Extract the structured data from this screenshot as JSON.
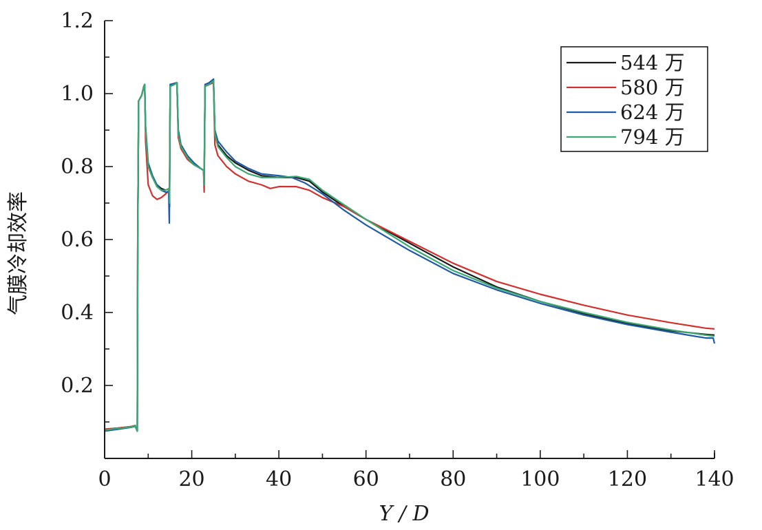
{
  "chart_data": {
    "type": "line",
    "xlabel": "Y / D",
    "ylabel": "气膜冷却效率",
    "xlim": [
      0,
      140
    ],
    "ylim": [
      0,
      1.2
    ],
    "xticks": [
      "0",
      "20",
      "40",
      "60",
      "80",
      "100",
      "120",
      "140"
    ],
    "yticks": [
      "0.2",
      "0.4",
      "0.6",
      "0.8",
      "1.0",
      "1.2"
    ],
    "grid": false,
    "legend_position": "top-right",
    "series": [
      {
        "name": "544 万",
        "color": "#1a1a1a",
        "points": [
          [
            0,
            0.08
          ],
          [
            3,
            0.083
          ],
          [
            6,
            0.087
          ],
          [
            7,
            0.09
          ],
          [
            7.5,
            0.075
          ],
          [
            7.6,
            0.6
          ],
          [
            7.8,
            0.98
          ],
          [
            8.5,
            0.995
          ],
          [
            9,
            1.02
          ],
          [
            9.2,
            1.025
          ],
          [
            9.4,
            0.9
          ],
          [
            10,
            0.8
          ],
          [
            11,
            0.77
          ],
          [
            12,
            0.75
          ],
          [
            13,
            0.74
          ],
          [
            14,
            0.735
          ],
          [
            14.8,
            0.74
          ],
          [
            14.9,
            0.69
          ],
          [
            15.05,
            1.02
          ],
          [
            16,
            1.025
          ],
          [
            16.6,
            1.03
          ],
          [
            16.9,
            0.9
          ],
          [
            17.5,
            0.86
          ],
          [
            19,
            0.83
          ],
          [
            20.5,
            0.81
          ],
          [
            22,
            0.795
          ],
          [
            22.7,
            0.79
          ],
          [
            22.85,
            0.75
          ],
          [
            23.05,
            1.02
          ],
          [
            24,
            1.025
          ],
          [
            25,
            1.035
          ],
          [
            25.3,
            0.9
          ],
          [
            26,
            0.86
          ],
          [
            28,
            0.83
          ],
          [
            30,
            0.81
          ],
          [
            33,
            0.79
          ],
          [
            36,
            0.775
          ],
          [
            40,
            0.77
          ],
          [
            44,
            0.77
          ],
          [
            47,
            0.76
          ],
          [
            50,
            0.73
          ],
          [
            55,
            0.69
          ],
          [
            60,
            0.655
          ],
          [
            70,
            0.59
          ],
          [
            80,
            0.525
          ],
          [
            90,
            0.47
          ],
          [
            100,
            0.43
          ],
          [
            110,
            0.397
          ],
          [
            120,
            0.37
          ],
          [
            130,
            0.35
          ],
          [
            138,
            0.34
          ],
          [
            140,
            0.338
          ]
        ]
      },
      {
        "name": "580 万",
        "color": "#d0312d",
        "points": [
          [
            0,
            0.08
          ],
          [
            3,
            0.083
          ],
          [
            6,
            0.087
          ],
          [
            7,
            0.09
          ],
          [
            7.5,
            0.075
          ],
          [
            7.6,
            0.6
          ],
          [
            7.8,
            0.98
          ],
          [
            8.5,
            0.995
          ],
          [
            9,
            1.02
          ],
          [
            9.2,
            1.025
          ],
          [
            9.4,
            0.87
          ],
          [
            10,
            0.75
          ],
          [
            11,
            0.72
          ],
          [
            12,
            0.71
          ],
          [
            13,
            0.715
          ],
          [
            14,
            0.725
          ],
          [
            14.8,
            0.735
          ],
          [
            14.9,
            0.73
          ],
          [
            15.05,
            1.02
          ],
          [
            16,
            1.025
          ],
          [
            16.6,
            1.03
          ],
          [
            16.9,
            0.88
          ],
          [
            17.5,
            0.85
          ],
          [
            19,
            0.82
          ],
          [
            20.5,
            0.805
          ],
          [
            22,
            0.795
          ],
          [
            22.7,
            0.79
          ],
          [
            22.85,
            0.73
          ],
          [
            23.05,
            1.02
          ],
          [
            24,
            1.025
          ],
          [
            25,
            1.03
          ],
          [
            25.3,
            0.86
          ],
          [
            26,
            0.83
          ],
          [
            28,
            0.8
          ],
          [
            30,
            0.78
          ],
          [
            33,
            0.76
          ],
          [
            36,
            0.75
          ],
          [
            38,
            0.74
          ],
          [
            40,
            0.745
          ],
          [
            44,
            0.745
          ],
          [
            47,
            0.735
          ],
          [
            50,
            0.715
          ],
          [
            55,
            0.69
          ],
          [
            60,
            0.655
          ],
          [
            70,
            0.595
          ],
          [
            80,
            0.535
          ],
          [
            90,
            0.485
          ],
          [
            100,
            0.45
          ],
          [
            110,
            0.42
          ],
          [
            120,
            0.393
          ],
          [
            130,
            0.372
          ],
          [
            138,
            0.357
          ],
          [
            140,
            0.355
          ]
        ]
      },
      {
        "name": "624 万",
        "color": "#1f5aa6",
        "points": [
          [
            0,
            0.075
          ],
          [
            3,
            0.08
          ],
          [
            6,
            0.085
          ],
          [
            7,
            0.088
          ],
          [
            7.5,
            0.075
          ],
          [
            7.6,
            0.6
          ],
          [
            7.8,
            0.98
          ],
          [
            8.5,
            0.995
          ],
          [
            9,
            1.02
          ],
          [
            9.2,
            1.025
          ],
          [
            9.4,
            0.91
          ],
          [
            10,
            0.81
          ],
          [
            11,
            0.775
          ],
          [
            12,
            0.75
          ],
          [
            13,
            0.735
          ],
          [
            14,
            0.73
          ],
          [
            14.7,
            0.73
          ],
          [
            14.85,
            0.645
          ],
          [
            15.05,
            1.025
          ],
          [
            16,
            1.028
          ],
          [
            16.6,
            1.03
          ],
          [
            16.9,
            0.9
          ],
          [
            17.5,
            0.86
          ],
          [
            19,
            0.83
          ],
          [
            20.5,
            0.81
          ],
          [
            22,
            0.795
          ],
          [
            22.7,
            0.79
          ],
          [
            22.85,
            0.76
          ],
          [
            23.05,
            1.025
          ],
          [
            24,
            1.03
          ],
          [
            25,
            1.04
          ],
          [
            25.3,
            0.9
          ],
          [
            26,
            0.87
          ],
          [
            28,
            0.84
          ],
          [
            30,
            0.815
          ],
          [
            33,
            0.795
          ],
          [
            36,
            0.78
          ],
          [
            40,
            0.775
          ],
          [
            43,
            0.77
          ],
          [
            46,
            0.755
          ],
          [
            50,
            0.725
          ],
          [
            55,
            0.68
          ],
          [
            60,
            0.64
          ],
          [
            70,
            0.57
          ],
          [
            80,
            0.507
          ],
          [
            90,
            0.462
          ],
          [
            100,
            0.425
          ],
          [
            110,
            0.393
          ],
          [
            120,
            0.367
          ],
          [
            130,
            0.346
          ],
          [
            138,
            0.33
          ],
          [
            139.7,
            0.33
          ],
          [
            140,
            0.315
          ]
        ]
      },
      {
        "name": "794 万",
        "color": "#3aa870",
        "points": [
          [
            0,
            0.078
          ],
          [
            3,
            0.082
          ],
          [
            6,
            0.086
          ],
          [
            7,
            0.089
          ],
          [
            7.5,
            0.075
          ],
          [
            7.6,
            0.6
          ],
          [
            7.8,
            0.98
          ],
          [
            8.5,
            0.995
          ],
          [
            9,
            1.02
          ],
          [
            9.2,
            1.025
          ],
          [
            9.4,
            0.9
          ],
          [
            10,
            0.8
          ],
          [
            11,
            0.77
          ],
          [
            12,
            0.745
          ],
          [
            13,
            0.735
          ],
          [
            14,
            0.735
          ],
          [
            14.8,
            0.74
          ],
          [
            14.9,
            0.7
          ],
          [
            15.05,
            1.02
          ],
          [
            16,
            1.025
          ],
          [
            16.6,
            1.03
          ],
          [
            16.9,
            0.89
          ],
          [
            17.5,
            0.855
          ],
          [
            19,
            0.825
          ],
          [
            20.5,
            0.805
          ],
          [
            22,
            0.795
          ],
          [
            22.7,
            0.79
          ],
          [
            22.85,
            0.75
          ],
          [
            23.05,
            1.02
          ],
          [
            24,
            1.025
          ],
          [
            25,
            1.035
          ],
          [
            25.3,
            0.89
          ],
          [
            26,
            0.855
          ],
          [
            28,
            0.825
          ],
          [
            30,
            0.8
          ],
          [
            33,
            0.78
          ],
          [
            36,
            0.77
          ],
          [
            40,
            0.77
          ],
          [
            44,
            0.773
          ],
          [
            47,
            0.765
          ],
          [
            50,
            0.735
          ],
          [
            55,
            0.695
          ],
          [
            60,
            0.655
          ],
          [
            70,
            0.58
          ],
          [
            80,
            0.515
          ],
          [
            90,
            0.467
          ],
          [
            100,
            0.43
          ],
          [
            110,
            0.4
          ],
          [
            120,
            0.373
          ],
          [
            130,
            0.352
          ],
          [
            138,
            0.338
          ],
          [
            140,
            0.335
          ]
        ]
      }
    ]
  }
}
